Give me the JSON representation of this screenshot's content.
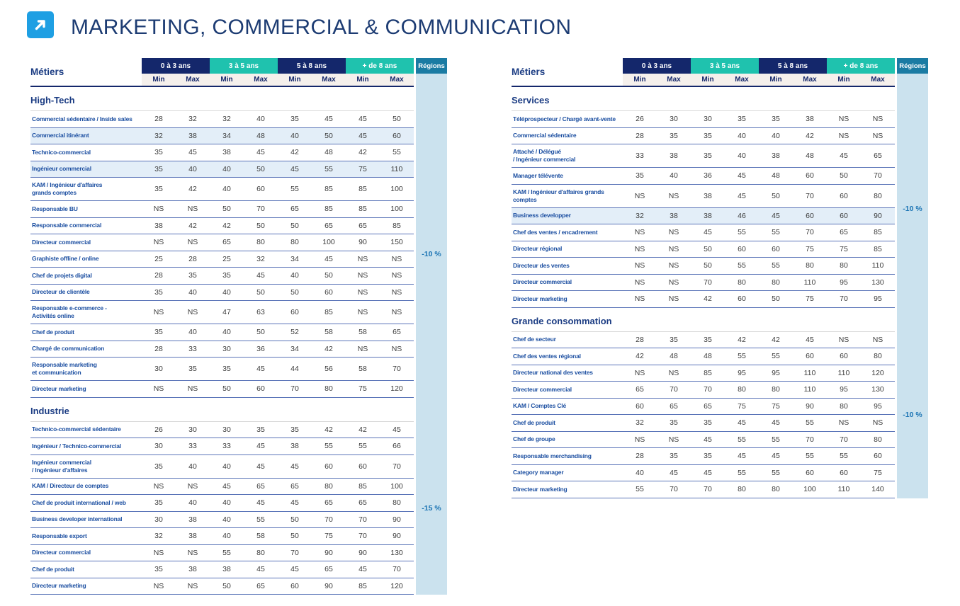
{
  "page": {
    "title": "MARKETING, COMMERCIAL & COMMUNICATION",
    "icon": "arrow-up-right-icon"
  },
  "colors": {
    "accent_icon": "#1E9FE3",
    "header_navy": "#14276B",
    "header_teal": "#1FC2AE",
    "regions_header": "#1A7BA3",
    "regions_band": "#CBE2EE",
    "row_highlight": "#E3EEF8",
    "title_text": "#1D3C73",
    "label_blue": "#1C4FA1",
    "region_note_text": "#1B74B4"
  },
  "columns": {
    "metiers_label": "Métiers",
    "experience": [
      "0 à 3 ans",
      "3 à 5 ans",
      "5 à 8 ans",
      "+ de 8 ans"
    ],
    "min_label": "Min",
    "max_label": "Max",
    "regions_label": "Régions"
  },
  "tables": [
    {
      "sections": [
        {
          "title": "High-Tech",
          "region_note": "-10 %",
          "rows": [
            {
              "label": "Commercial sédentaire / Inside sales",
              "values": [
                "28",
                "32",
                "32",
                "40",
                "35",
                "45",
                "45",
                "50"
              ],
              "highlight": false
            },
            {
              "label": "Commercial itinérant",
              "values": [
                "32",
                "38",
                "34",
                "48",
                "40",
                "50",
                "45",
                "60"
              ],
              "highlight": true
            },
            {
              "label": "Technico-commercial",
              "values": [
                "35",
                "45",
                "38",
                "45",
                "42",
                "48",
                "42",
                "55"
              ],
              "highlight": false
            },
            {
              "label": "Ingénieur commercial",
              "values": [
                "35",
                "40",
                "40",
                "50",
                "45",
                "55",
                "75",
                "110"
              ],
              "highlight": true
            },
            {
              "label": "KAM / Ingénieur d'affaires\ngrands comptes",
              "values": [
                "35",
                "42",
                "40",
                "60",
                "55",
                "85",
                "85",
                "100"
              ],
              "highlight": false
            },
            {
              "label": "Responsable BU",
              "values": [
                "NS",
                "NS",
                "50",
                "70",
                "65",
                "85",
                "85",
                "100"
              ],
              "highlight": false
            },
            {
              "label": "Responsable commercial",
              "values": [
                "38",
                "42",
                "42",
                "50",
                "50",
                "65",
                "65",
                "85"
              ],
              "highlight": false
            },
            {
              "label": "Directeur commercial",
              "values": [
                "NS",
                "NS",
                "65",
                "80",
                "80",
                "100",
                "90",
                "150"
              ],
              "highlight": false
            },
            {
              "label": "Graphiste offline / online",
              "values": [
                "25",
                "28",
                "25",
                "32",
                "34",
                "45",
                "NS",
                "NS"
              ],
              "highlight": false
            },
            {
              "label": "Chef de projets digital",
              "values": [
                "28",
                "35",
                "35",
                "45",
                "40",
                "50",
                "NS",
                "NS"
              ],
              "highlight": false
            },
            {
              "label": "Directeur de clientèle",
              "values": [
                "35",
                "40",
                "40",
                "50",
                "50",
                "60",
                "NS",
                "NS"
              ],
              "highlight": false
            },
            {
              "label": "Responsable e-commerce -\nActivités online",
              "values": [
                "NS",
                "NS",
                "47",
                "63",
                "60",
                "85",
                "NS",
                "NS"
              ],
              "highlight": false
            },
            {
              "label": "Chef de produit",
              "values": [
                "35",
                "40",
                "40",
                "50",
                "52",
                "58",
                "58",
                "65"
              ],
              "highlight": false
            },
            {
              "label": "Chargé de communication",
              "values": [
                "28",
                "33",
                "30",
                "36",
                "34",
                "42",
                "NS",
                "NS"
              ],
              "highlight": false
            },
            {
              "label": "Responsable marketing\net communication",
              "values": [
                "30",
                "35",
                "35",
                "45",
                "44",
                "56",
                "58",
                "70"
              ],
              "highlight": false
            },
            {
              "label": "Directeur marketing",
              "values": [
                "NS",
                "NS",
                "50",
                "60",
                "70",
                "80",
                "75",
                "120"
              ],
              "highlight": false
            }
          ]
        },
        {
          "title": "Industrie",
          "region_note": "-15 %",
          "rows": [
            {
              "label": "Technico-commercial sédentaire",
              "values": [
                "26",
                "30",
                "30",
                "35",
                "35",
                "42",
                "42",
                "45"
              ],
              "highlight": false
            },
            {
              "label": "Ingénieur / Technico-commercial",
              "values": [
                "30",
                "33",
                "33",
                "45",
                "38",
                "55",
                "55",
                "66"
              ],
              "highlight": false
            },
            {
              "label": "Ingénieur commercial\n/ Ingénieur d'affaires",
              "values": [
                "35",
                "40",
                "40",
                "45",
                "45",
                "60",
                "60",
                "70"
              ],
              "highlight": false
            },
            {
              "label": "KAM / Directeur de comptes",
              "values": [
                "NS",
                "NS",
                "45",
                "65",
                "65",
                "80",
                "85",
                "100"
              ],
              "highlight": false
            },
            {
              "label": "Chef de produit international / web",
              "values": [
                "35",
                "40",
                "40",
                "45",
                "45",
                "65",
                "65",
                "80"
              ],
              "highlight": false
            },
            {
              "label": "Business developer international",
              "values": [
                "30",
                "38",
                "40",
                "55",
                "50",
                "70",
                "70",
                "90"
              ],
              "highlight": false
            },
            {
              "label": "Responsable export",
              "values": [
                "32",
                "38",
                "40",
                "58",
                "50",
                "75",
                "70",
                "90"
              ],
              "highlight": false
            },
            {
              "label": "Directeur commercial",
              "values": [
                "NS",
                "NS",
                "55",
                "80",
                "70",
                "90",
                "90",
                "130"
              ],
              "highlight": false
            },
            {
              "label": "Chef de produit",
              "values": [
                "35",
                "38",
                "38",
                "45",
                "45",
                "65",
                "45",
                "70"
              ],
              "highlight": false
            },
            {
              "label": "Directeur marketing",
              "values": [
                "NS",
                "NS",
                "50",
                "65",
                "60",
                "90",
                "85",
                "120"
              ],
              "highlight": false
            }
          ]
        }
      ]
    },
    {
      "sections": [
        {
          "title": "Services",
          "region_note": "-10 %",
          "rows": [
            {
              "label": "Téléprospecteur / Chargé avant-vente",
              "values": [
                "26",
                "30",
                "30",
                "35",
                "35",
                "38",
                "NS",
                "NS"
              ],
              "highlight": false
            },
            {
              "label": "Commercial sédentaire",
              "values": [
                "28",
                "35",
                "35",
                "40",
                "40",
                "42",
                "NS",
                "NS"
              ],
              "highlight": false
            },
            {
              "label": "Attaché / Délégué\n/ Ingénieur commercial",
              "values": [
                "33",
                "38",
                "35",
                "40",
                "38",
                "48",
                "45",
                "65"
              ],
              "highlight": false
            },
            {
              "label": "Manager télévente",
              "values": [
                "35",
                "40",
                "36",
                "45",
                "48",
                "60",
                "50",
                "70"
              ],
              "highlight": false
            },
            {
              "label": "KAM / Ingénieur d'affaires grands\ncomptes",
              "values": [
                "NS",
                "NS",
                "38",
                "45",
                "50",
                "70",
                "60",
                "80"
              ],
              "highlight": false
            },
            {
              "label": "Business developper",
              "values": [
                "32",
                "38",
                "38",
                "46",
                "45",
                "60",
                "60",
                "90"
              ],
              "highlight": true
            },
            {
              "label": "Chef des ventes / encadrement",
              "values": [
                "NS",
                "NS",
                "45",
                "55",
                "55",
                "70",
                "65",
                "85"
              ],
              "highlight": false
            },
            {
              "label": "Directeur régional",
              "values": [
                "NS",
                "NS",
                "50",
                "60",
                "60",
                "75",
                "75",
                "85"
              ],
              "highlight": false
            },
            {
              "label": "Directeur des ventes",
              "values": [
                "NS",
                "NS",
                "50",
                "55",
                "55",
                "80",
                "80",
                "110"
              ],
              "highlight": false
            },
            {
              "label": "Directeur commercial",
              "values": [
                "NS",
                "NS",
                "70",
                "80",
                "80",
                "110",
                "95",
                "130"
              ],
              "highlight": false
            },
            {
              "label": "Directeur marketing",
              "values": [
                "NS",
                "NS",
                "42",
                "60",
                "50",
                "75",
                "70",
                "95"
              ],
              "highlight": false
            }
          ]
        },
        {
          "title": "Grande consommation",
          "region_note": "-10 %",
          "rows": [
            {
              "label": "Chef de secteur",
              "values": [
                "28",
                "35",
                "35",
                "42",
                "42",
                "45",
                "NS",
                "NS"
              ],
              "highlight": false
            },
            {
              "label": "Chef des ventes régional",
              "values": [
                "42",
                "48",
                "48",
                "55",
                "55",
                "60",
                "60",
                "80"
              ],
              "highlight": false
            },
            {
              "label": "Directeur national des ventes",
              "values": [
                "NS",
                "NS",
                "85",
                "95",
                "95",
                "110",
                "110",
                "120"
              ],
              "highlight": false
            },
            {
              "label": "Directeur commercial",
              "values": [
                "65",
                "70",
                "70",
                "80",
                "80",
                "110",
                "95",
                "130"
              ],
              "highlight": false
            },
            {
              "label": "KAM / Comptes Clé",
              "values": [
                "60",
                "65",
                "65",
                "75",
                "75",
                "90",
                "80",
                "95"
              ],
              "highlight": false
            },
            {
              "label": "Chef de produit",
              "values": [
                "32",
                "35",
                "35",
                "45",
                "45",
                "55",
                "NS",
                "NS"
              ],
              "highlight": false
            },
            {
              "label": "Chef de groupe",
              "values": [
                "NS",
                "NS",
                "45",
                "55",
                "55",
                "70",
                "70",
                "80"
              ],
              "highlight": false
            },
            {
              "label": "Responsable merchandising",
              "values": [
                "28",
                "35",
                "35",
                "45",
                "45",
                "55",
                "55",
                "60"
              ],
              "highlight": false
            },
            {
              "label": "Category manager",
              "values": [
                "40",
                "45",
                "45",
                "55",
                "55",
                "60",
                "60",
                "75"
              ],
              "highlight": false
            },
            {
              "label": "Directeur marketing",
              "values": [
                "55",
                "70",
                "70",
                "80",
                "80",
                "100",
                "110",
                "140"
              ],
              "highlight": false
            }
          ]
        }
      ]
    }
  ]
}
